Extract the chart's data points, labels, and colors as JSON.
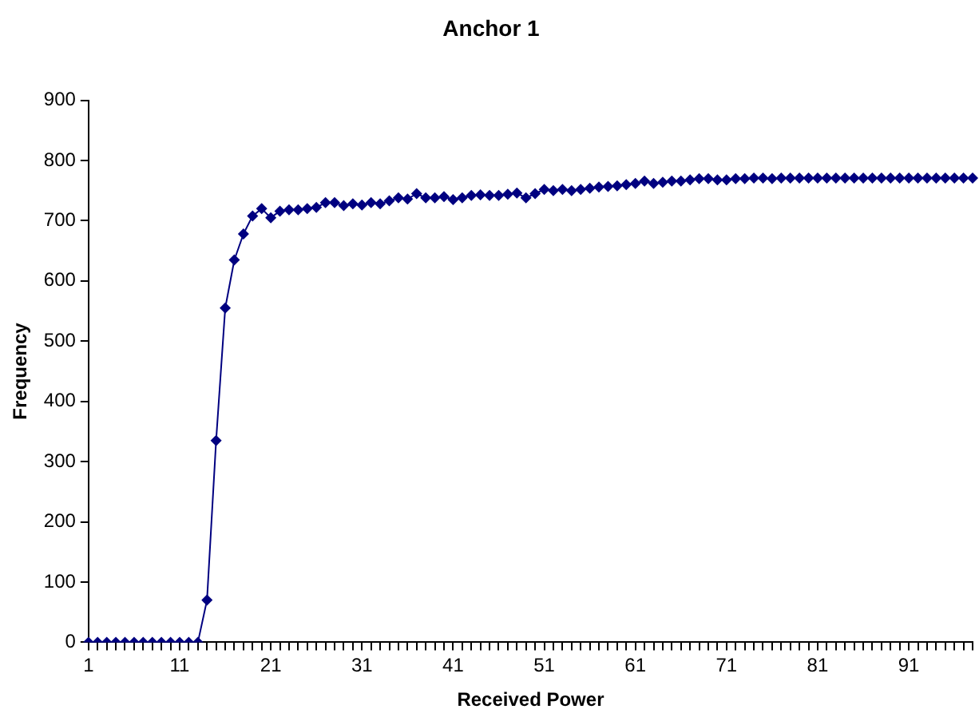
{
  "chart_data": {
    "type": "line",
    "title": "Anchor 1",
    "xlabel": "Received Power",
    "ylabel": "Frequency",
    "categories": [
      "1",
      null,
      null,
      null,
      null,
      null,
      null,
      null,
      null,
      null,
      "11",
      null,
      null,
      null,
      null,
      null,
      null,
      null,
      null,
      null,
      "21",
      null,
      null,
      null,
      null,
      null,
      null,
      null,
      null,
      null,
      "31",
      null,
      null,
      null,
      null,
      null,
      null,
      null,
      null,
      null,
      "41",
      null,
      null,
      null,
      null,
      null,
      null,
      null,
      null,
      null,
      "51",
      null,
      null,
      null,
      null,
      null,
      null,
      null,
      null,
      null,
      "61",
      null,
      null,
      null,
      null,
      null,
      null,
      null,
      null,
      null,
      "71",
      null,
      null,
      null,
      null,
      null,
      null,
      null,
      null,
      null,
      "81",
      null,
      null,
      null,
      null,
      null,
      null,
      null,
      null,
      null,
      "91",
      null,
      null,
      null,
      null,
      null,
      null,
      null
    ],
    "series": [
      {
        "color": "#000080",
        "values": [
          0,
          0,
          0,
          0,
          0,
          0,
          0,
          0,
          0,
          0,
          0,
          0,
          0,
          70,
          335,
          555,
          635,
          678,
          708,
          720,
          705,
          716,
          718,
          718,
          720,
          722,
          730,
          730,
          725,
          728,
          726,
          730,
          728,
          733,
          738,
          736,
          745,
          738,
          738,
          740,
          735,
          738,
          742,
          743,
          742,
          742,
          744,
          746,
          738,
          745,
          752,
          750,
          752,
          750,
          752,
          754,
          756,
          757,
          758,
          760,
          762,
          766,
          762,
          764,
          766,
          766,
          768,
          770,
          770,
          768,
          768,
          770,
          770,
          771,
          771,
          770,
          771,
          771,
          771,
          771,
          771,
          771,
          771,
          771,
          771,
          771,
          771,
          771,
          771,
          771,
          771,
          771,
          771,
          771,
          771,
          771,
          771,
          771
        ]
      }
    ],
    "ylim": [
      0,
      900
    ],
    "yticks": [
      0,
      100,
      200,
      300,
      400,
      500,
      600,
      700,
      800,
      900
    ],
    "grid": false,
    "legend": false,
    "marker": "diamond",
    "line_style": "solid"
  }
}
